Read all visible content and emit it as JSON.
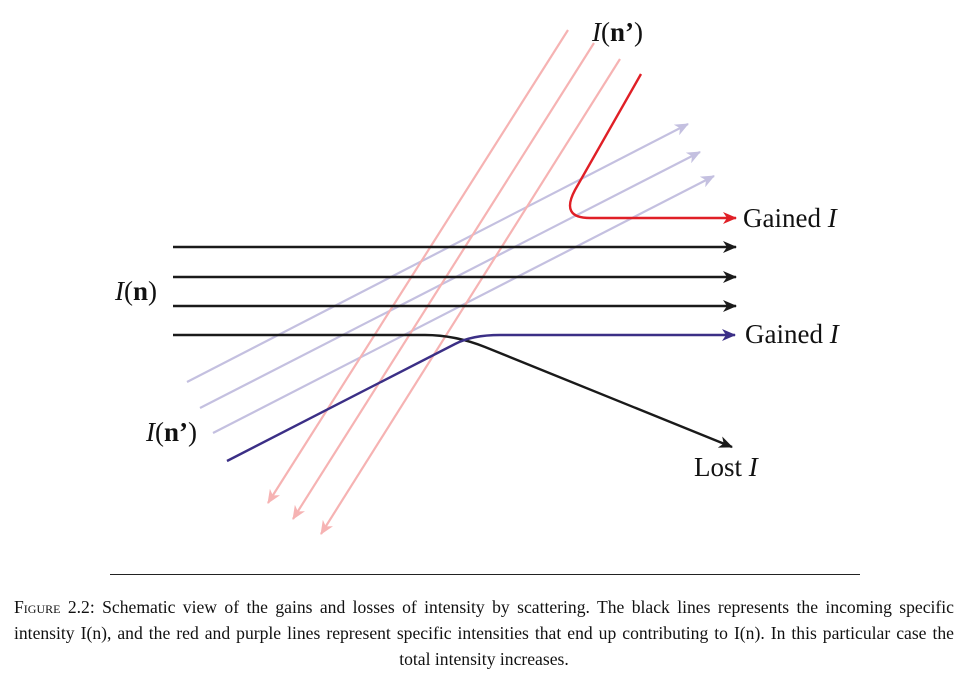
{
  "figure": {
    "labels": {
      "incoming_left": {
        "I": "I",
        "open": "(",
        "n": "n",
        "close": ")"
      },
      "scattered_left": {
        "I": "I",
        "open": "(",
        "n": "n’",
        "close": ")"
      },
      "scattered_top": {
        "I": "I",
        "open": "(",
        "n": "n’",
        "close": ")"
      },
      "gained_top": {
        "word": "Gained ",
        "I": "I"
      },
      "gained_mid": {
        "word": "Gained ",
        "I": "I"
      },
      "lost": {
        "word": "Lost ",
        "I": "I"
      }
    },
    "colors": {
      "black_lines": "#1a1a1a",
      "red_line": "#e01f26",
      "faded_red": "#f6b3b3",
      "purple_line": "#3b2f86",
      "faded_purple": "#c4c0e0"
    }
  },
  "caption": {
    "prefix_first": "F",
    "prefix_rest": "IGURE",
    "number": " 2.2: ",
    "text": "Schematic view of the gains and losses of intensity by scattering. The black lines represents the incoming specific intensity I(n), and the red and purple lines represent specific intensities that end up contributing to I(n). In this particular case the total intensity increases."
  }
}
